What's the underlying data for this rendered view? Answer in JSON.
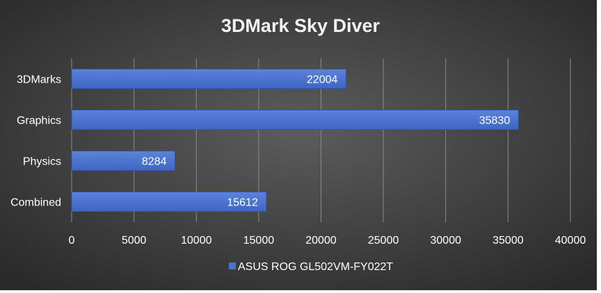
{
  "chart_data": {
    "type": "bar",
    "orientation": "horizontal",
    "title": "3DMark Sky Diver",
    "categories": [
      "3DMarks",
      "Graphics",
      "Physics",
      "Combined"
    ],
    "series": [
      {
        "name": "ASUS ROG GL502VM-FY022T",
        "values": [
          22004,
          35830,
          8284,
          15612
        ],
        "color": "#4a72cf"
      }
    ],
    "xlim": [
      0,
      40000
    ],
    "xticks": [
      0,
      5000,
      10000,
      15000,
      20000,
      25000,
      30000,
      35000,
      40000
    ],
    "grid": true,
    "legend": "bottom",
    "data_labels": true,
    "xlabel": "",
    "ylabel": ""
  },
  "colors": {
    "background_center": "#5c5c5c",
    "background_edge": "#2a2a2a",
    "title": "#f2f2f2",
    "text": "#ffffff",
    "grid": "#8a8a8a",
    "bar": "#4a72cf",
    "bar_edge": "#2f55a8"
  }
}
